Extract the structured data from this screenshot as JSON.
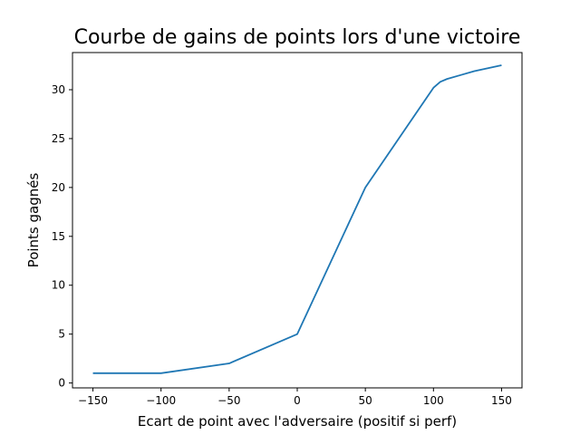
{
  "chart_data": {
    "type": "line",
    "title": "Courbe de gains de points lors d'une victoire",
    "xlabel": "Ecart de point avec l'adversaire (positif si perf)",
    "ylabel": "Points gagnés",
    "xlim": [
      -165,
      165
    ],
    "ylim": [
      -0.5,
      33.8
    ],
    "x_ticks": [
      -150,
      -100,
      -50,
      0,
      50,
      100,
      150
    ],
    "x_tick_labels": [
      "−150",
      "−100",
      "−50",
      "0",
      "50",
      "100",
      "150"
    ],
    "y_ticks": [
      0,
      5,
      10,
      15,
      20,
      25,
      30
    ],
    "y_tick_labels": [
      "0",
      "5",
      "10",
      "15",
      "20",
      "25",
      "30"
    ],
    "grid": false,
    "series": [
      {
        "color": "#1f77b4",
        "x": [
          -150,
          -100,
          -50,
          0,
          50,
          100,
          105,
          110,
          120,
          130,
          140,
          150
        ],
        "y": [
          1,
          1,
          2,
          5,
          20,
          30.2,
          30.8,
          31.1,
          31.5,
          31.9,
          32.2,
          32.5
        ]
      }
    ]
  }
}
